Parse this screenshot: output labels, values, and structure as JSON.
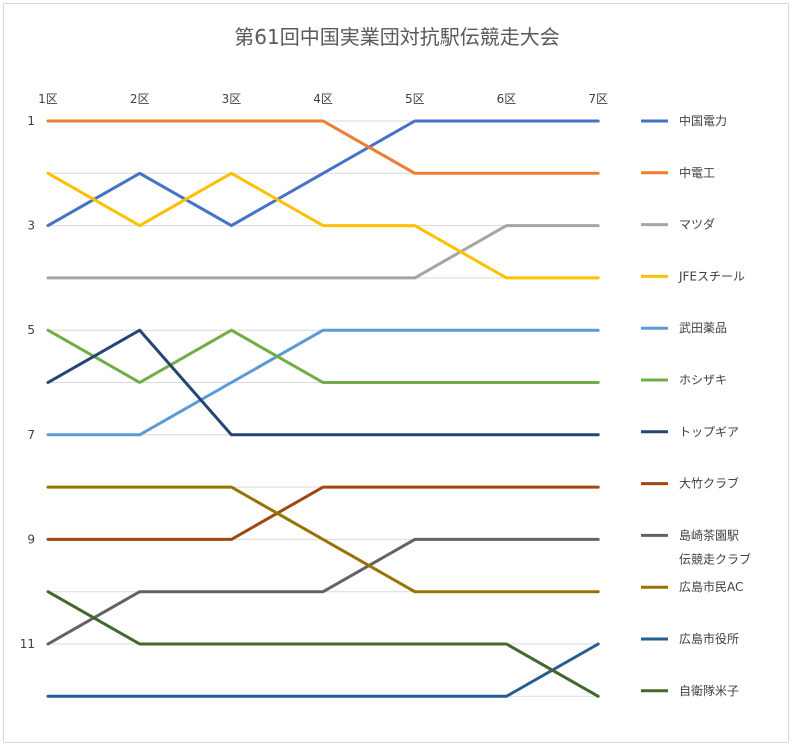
{
  "chart_data": {
    "type": "line",
    "title": "第61回中国実業団対抗駅伝競走大会",
    "xlabel": "",
    "ylabel": "",
    "categories": [
      "1区",
      "2区",
      "3区",
      "4区",
      "5区",
      "6区",
      "7区"
    ],
    "y_ticks": [
      "1",
      "3",
      "5",
      "7",
      "9",
      "11"
    ],
    "ylim": [
      1,
      12
    ],
    "y_reversed": true,
    "grid": "horizontal",
    "legend_position": "right",
    "series": [
      {
        "name": "中国電力",
        "values": [
          3,
          2,
          3,
          2,
          1,
          1,
          1
        ],
        "color": "#4472C4"
      },
      {
        "name": "中電工",
        "values": [
          1,
          1,
          1,
          1,
          2,
          2,
          2
        ],
        "color": "#ED7D31"
      },
      {
        "name": "マツダ",
        "values": [
          4,
          4,
          4,
          4,
          4,
          3,
          3
        ],
        "color": "#A5A5A5"
      },
      {
        "name": "JFEスチール",
        "values": [
          2,
          3,
          2,
          3,
          3,
          4,
          4
        ],
        "color": "#FFC000"
      },
      {
        "name": "武田薬品",
        "values": [
          7,
          7,
          6,
          5,
          5,
          5,
          5
        ],
        "color": "#5B9BD5"
      },
      {
        "name": "ホシザキ",
        "values": [
          5,
          6,
          5,
          6,
          6,
          6,
          6
        ],
        "color": "#70AD47"
      },
      {
        "name": "トップギア",
        "values": [
          6,
          5,
          7,
          7,
          7,
          7,
          7
        ],
        "color": "#264478"
      },
      {
        "name": "大竹クラブ",
        "values": [
          9,
          9,
          9,
          8,
          8,
          8,
          8
        ],
        "color": "#9E480E"
      },
      {
        "name": [
          "島崎茶園駅",
          "伝競走クラブ"
        ],
        "values": [
          11,
          10,
          10,
          10,
          9,
          9,
          9
        ],
        "color": "#636363"
      },
      {
        "name": "広島市民AC",
        "values": [
          8,
          8,
          8,
          9,
          10,
          10,
          10
        ],
        "color": "#997300"
      },
      {
        "name": "広島市役所",
        "values": [
          12,
          12,
          12,
          12,
          12,
          12,
          11
        ],
        "color": "#255E91"
      },
      {
        "name": "自衛隊米子",
        "values": [
          10,
          11,
          11,
          11,
          11,
          11,
          12
        ],
        "color": "#43682B"
      }
    ]
  }
}
